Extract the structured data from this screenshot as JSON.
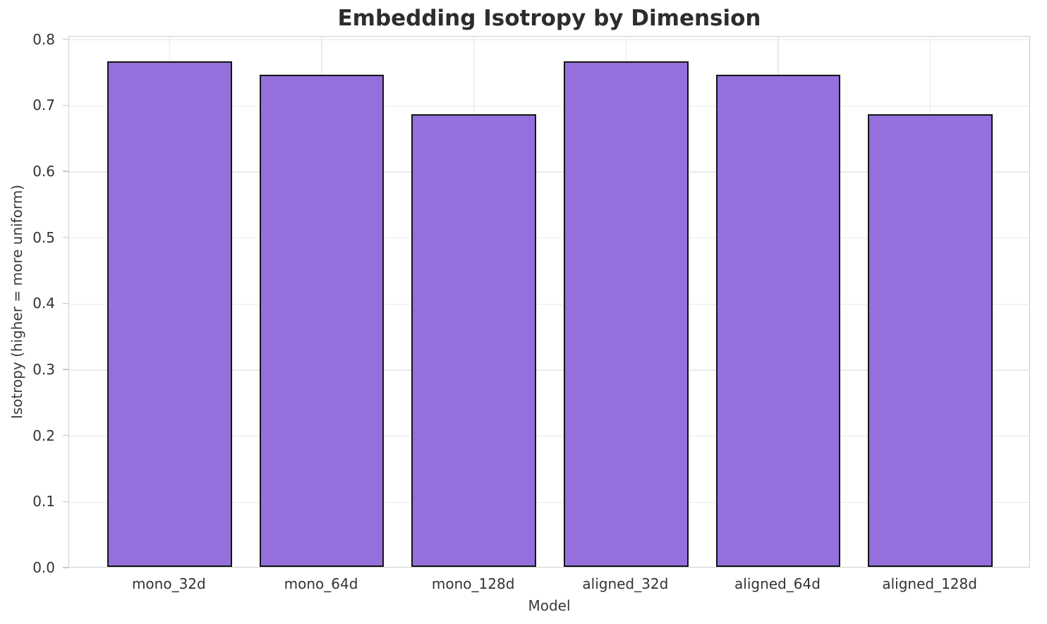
{
  "figure": {
    "background": "#ffffff"
  },
  "chart_data": {
    "type": "bar",
    "title": "Embedding Isotropy by Dimension",
    "xlabel": "Model",
    "ylabel": "Isotropy (higher = more uniform)",
    "categories": [
      "mono_32d",
      "mono_64d",
      "mono_128d",
      "aligned_32d",
      "aligned_64d",
      "aligned_128d"
    ],
    "values": [
      0.765,
      0.745,
      0.685,
      0.765,
      0.745,
      0.685
    ],
    "ylim": [
      0,
      0.805
    ],
    "yticks": [
      0.0,
      0.1,
      0.2,
      0.3,
      0.4,
      0.5,
      0.6,
      0.7,
      0.8
    ],
    "ytick_labels": [
      "0.0",
      "0.1",
      "0.2",
      "0.3",
      "0.4",
      "0.5",
      "0.6",
      "0.7",
      "0.8"
    ],
    "grid": true,
    "legend_position": "none",
    "bar_color": "#9370DB",
    "bar_edge_color": "#141414",
    "grid_color": "#e9e9e9",
    "spine_color": "#cfcfcf",
    "tick_text_color": "#333333",
    "label_text_color": "#3a3a3a",
    "title_color": "#2d2d2d"
  }
}
